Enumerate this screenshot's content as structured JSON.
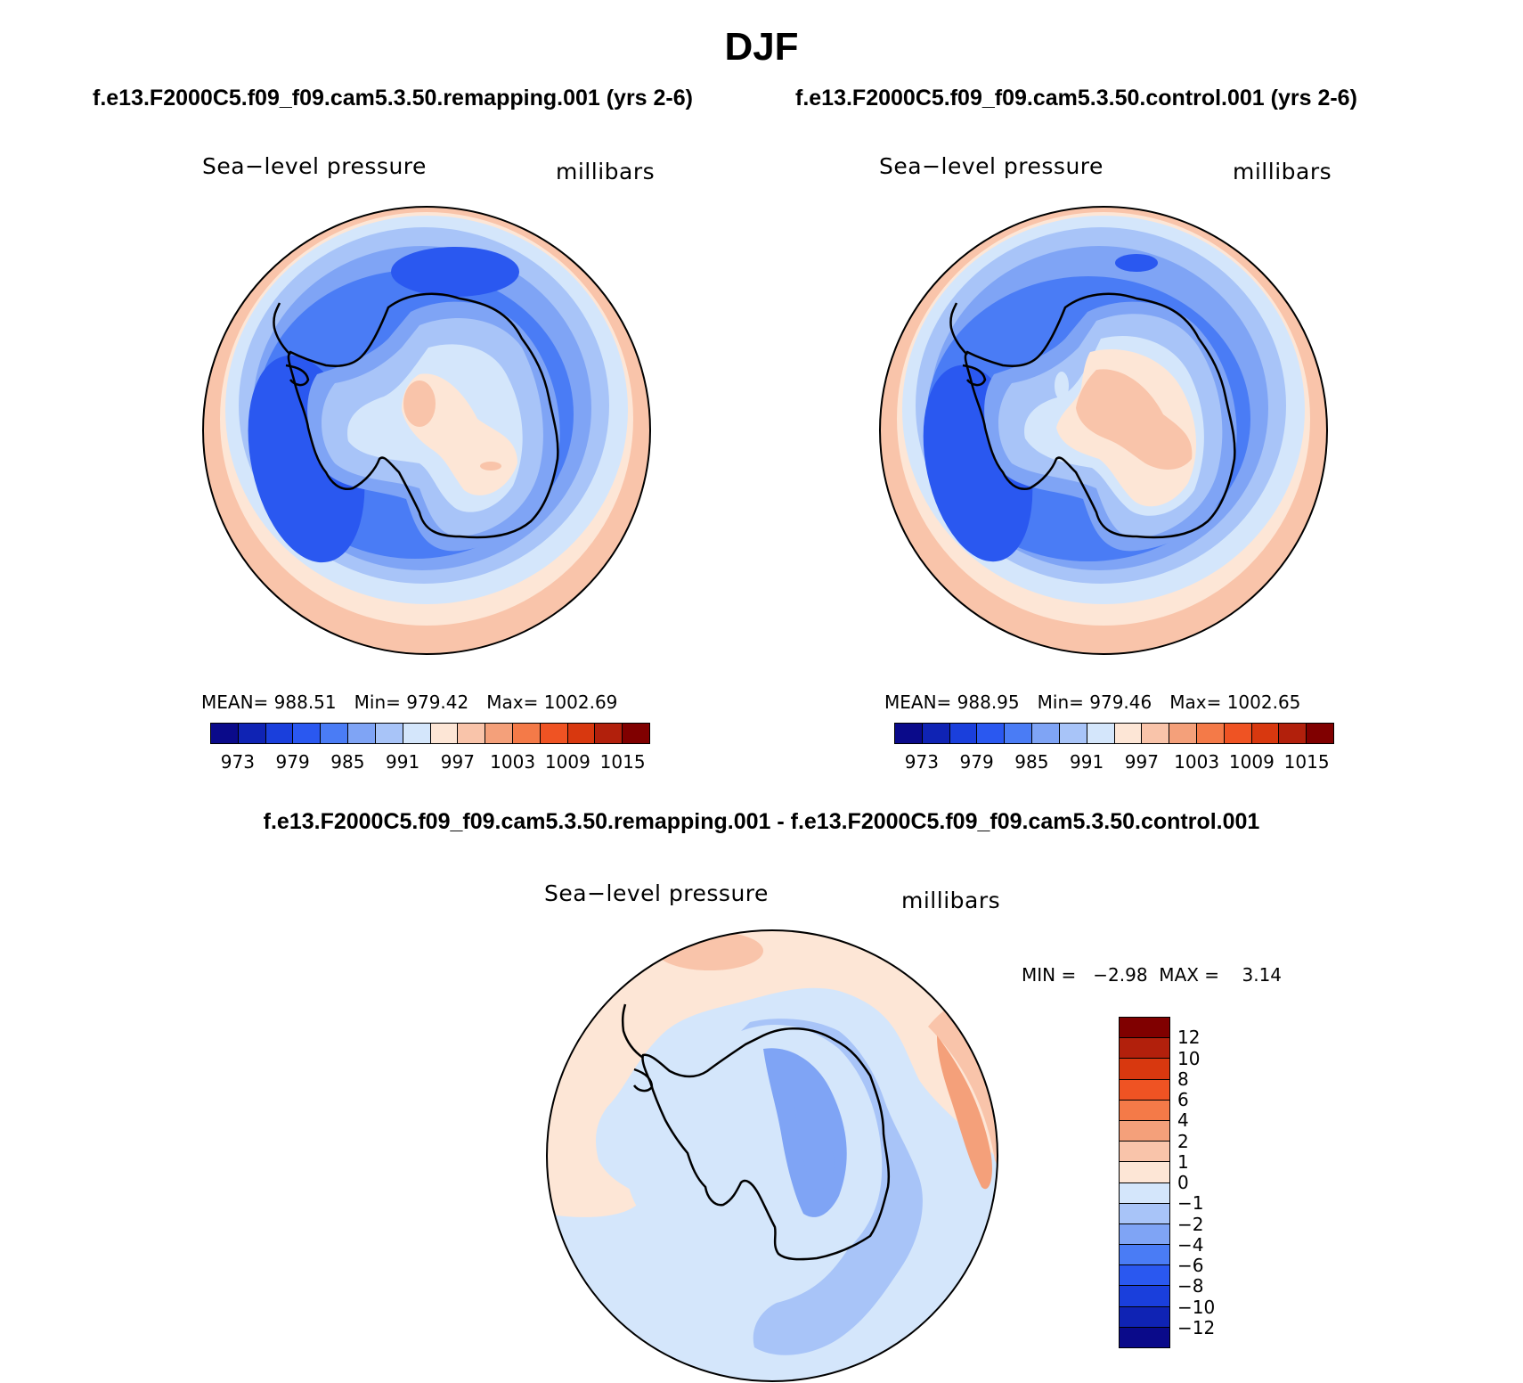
{
  "title": "DJF",
  "panels": [
    {
      "case_title": "f.e13.F2000C5.f09_f09.cam5.3.50.remapping.001 (yrs 2-6)",
      "variable": "Sea−level pressure",
      "units": "millibars",
      "stats": {
        "mean": "MEAN= 988.51",
        "min": "Min= 979.42",
        "max": "Max= 1002.69"
      }
    },
    {
      "case_title": "f.e13.F2000C5.f09_f09.cam5.3.50.control.001 (yrs 2-6)",
      "variable": "Sea−level pressure",
      "units": "millibars",
      "stats": {
        "mean": "MEAN= 988.95",
        "min": "Min= 979.46",
        "max": "Max= 1002.65"
      }
    }
  ],
  "horizontal_colorbar": {
    "colors": [
      "#0a0a8a",
      "#0f23b4",
      "#1a3fdc",
      "#2a58f0",
      "#4a7cf5",
      "#7fa4f5",
      "#a8c4f8",
      "#d4e6fb",
      "#fde6d6",
      "#f9c4aa",
      "#f4a07a",
      "#f47a48",
      "#ef5323",
      "#d8380f",
      "#b2200c",
      "#800000"
    ],
    "tick_labels": [
      "973",
      "979",
      "985",
      "991",
      "997",
      "1003",
      "1009",
      "1015"
    ]
  },
  "difference": {
    "title": "f.e13.F2000C5.f09_f09.cam5.3.50.remapping.001 - f.e13.F2000C5.f09_f09.cam5.3.50.control.001",
    "variable": "Sea−level pressure",
    "units": "millibars",
    "minmax": "MIN =   −2.98  MAX =    3.14",
    "colorbar": {
      "colors": [
        "#800000",
        "#b2200c",
        "#d8380f",
        "#ef5323",
        "#f47a48",
        "#f4a07a",
        "#f9c4aa",
        "#fde6d6",
        "#d4e6fb",
        "#a8c4f8",
        "#7fa4f5",
        "#4a7cf5",
        "#2a58f0",
        "#1a3fdc",
        "#0f23b4",
        "#0a0a8a"
      ],
      "tick_labels": [
        "12",
        "10",
        "8",
        "6",
        "4",
        "2",
        "1",
        "0",
        "−1",
        "−2",
        "−4",
        "−6",
        "−8",
        "−10",
        "−12"
      ]
    }
  }
}
